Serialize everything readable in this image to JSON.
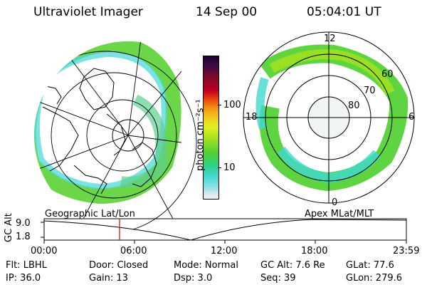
{
  "header": {
    "instrument": "Ultraviolet Imager",
    "date": "14 Sep 00",
    "time": "05:04:01 UT"
  },
  "colorbar": {
    "unit_label": "photon cm⁻²s⁻¹",
    "ticks": [
      "100",
      "10"
    ],
    "colors_top_to_bottom": [
      "#1a0030",
      "#3a0a4a",
      "#7a0a2a",
      "#c00020",
      "#e84010",
      "#f09010",
      "#f0d020",
      "#e0f020",
      "#a0e020",
      "#50d030",
      "#30d080",
      "#40d8d0",
      "#90e0e8",
      "#d0e8f0",
      "#f4f4f4"
    ]
  },
  "left_map": {
    "projection_label": "Geographic Lat/Lon"
  },
  "right_map": {
    "projection_label": "Apex  MLat/MLT",
    "mlt_labels": {
      "top": "12",
      "left": "18",
      "right": "6",
      "bottom": "0"
    },
    "lat_labels": [
      "60",
      "70",
      "80"
    ]
  },
  "altitude_plot": {
    "ylabel": "GC Alt",
    "ymax_label": "9.0",
    "ymin_label": "1.8",
    "time_ticks": [
      "00:00",
      "06:00",
      "12:00",
      "18:00",
      "23:59"
    ],
    "marker_time": "05:04",
    "marker_color": "#e00000"
  },
  "info": {
    "filter": "Flt: LBHL",
    "ip": "IP: 36.0",
    "door": "Door: Closed",
    "gain": "Gain: 13",
    "mode": "Mode: Normal",
    "dsp": "Dsp:     3.0",
    "gc_alt": "GC Alt: 7.6 Re",
    "seq": "Seq: 39",
    "glat": "GLat:   77.6",
    "glon": "GLon: 279.6"
  }
}
